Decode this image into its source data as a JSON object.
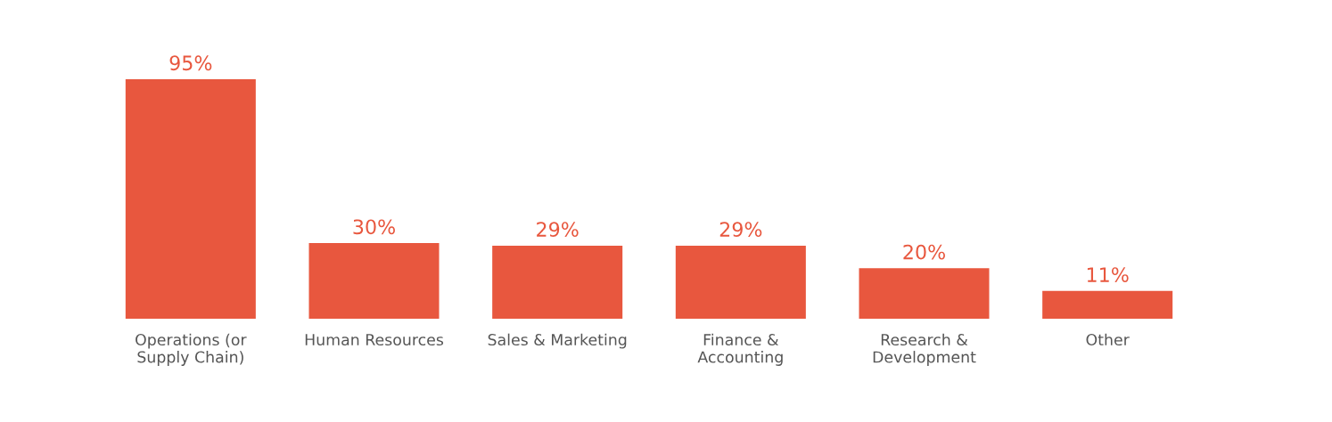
{
  "chart_data": {
    "type": "bar",
    "categories": [
      "Operations (or\nSupply Chain)",
      "Human Resources",
      "Sales & Marketing",
      "Finance &\nAccounting",
      "Research &\nDevelopment",
      "Other"
    ],
    "values": [
      95,
      30,
      29,
      29,
      20,
      11
    ],
    "value_labels": [
      "95%",
      "30%",
      "29%",
      "29%",
      "20%",
      "11%"
    ],
    "color": "#e8573e",
    "grid": false,
    "legend": false
  }
}
